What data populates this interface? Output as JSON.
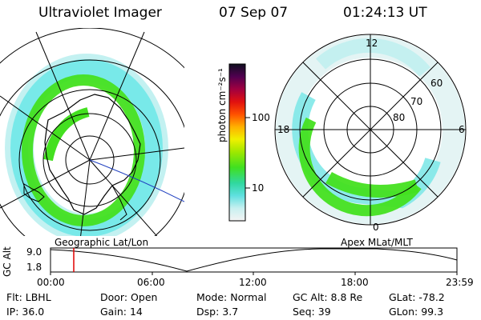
{
  "header": {
    "instrument": "Ultraviolet Imager",
    "date": "07 Sep 07",
    "time": "01:24:13 UT"
  },
  "panels": {
    "left_label": "Geographic Lat/Lon",
    "right_label": "Apex MLat/MLT",
    "mlt_labels": [
      "12",
      "18",
      "6",
      "0"
    ],
    "mlat_labels": [
      "60",
      "70",
      "80"
    ]
  },
  "colorbar": {
    "unit_label": "photon cm⁻²s⁻¹",
    "ticks": [
      "100",
      "10"
    ]
  },
  "timeline": {
    "ylabel": "GC Alt",
    "y_ticks": [
      "9.0",
      "1.8"
    ],
    "x_ticks": [
      "00:00",
      "06:00",
      "12:00",
      "18:00",
      "23:59"
    ],
    "marker_time": "01:24:13"
  },
  "info": {
    "row1": [
      {
        "label": "Flt:",
        "value": "LBHL"
      },
      {
        "label": "Door:",
        "value": "Open"
      },
      {
        "label": "Mode:",
        "value": "Normal"
      },
      {
        "label": "GC Alt:",
        "value": "8.8 Re"
      },
      {
        "label": "GLat:",
        "value": "-78.2"
      }
    ],
    "row2": [
      {
        "label": "IP:",
        "value": "36.0"
      },
      {
        "label": "Gain:",
        "value": "14"
      },
      {
        "label": "Dsp:",
        "value": "3.7"
      },
      {
        "label": "Seq:",
        "value": "39"
      },
      {
        "label": "GLon:",
        "value": "99.3"
      }
    ]
  },
  "colors": {
    "aurora_green": "#44e020",
    "aurora_cyan": "#70e8e8",
    "marker": "#e00000",
    "terminator": "#2040c0"
  }
}
